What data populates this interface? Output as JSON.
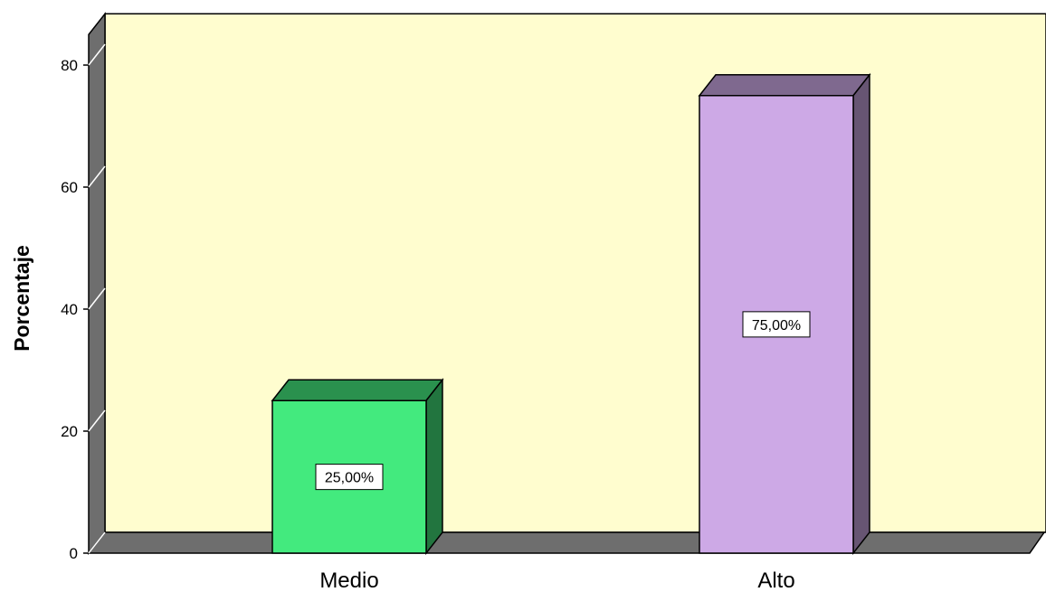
{
  "chart_data": {
    "type": "bar",
    "title": "",
    "xlabel": "",
    "ylabel": "Porcentaje",
    "ylim": [
      0,
      85
    ],
    "y_ticks": [
      0,
      20,
      40,
      60,
      80
    ],
    "categories": [
      "Medio",
      "Alto"
    ],
    "values": [
      25,
      75
    ],
    "data_labels": [
      "25,00%",
      "75,00%"
    ],
    "colors": [
      "#43EA7E",
      "#CDA9E6"
    ],
    "style": "3d",
    "grid": false,
    "plot_background": "#FFFDCF"
  }
}
